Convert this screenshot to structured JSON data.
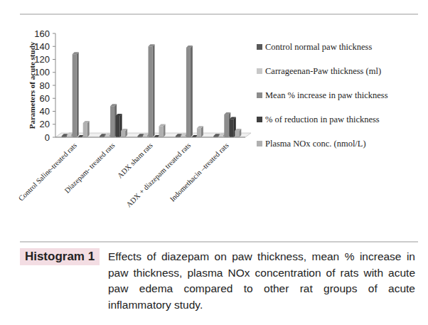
{
  "chart_data": {
    "type": "bar",
    "title": "Histogram 1",
    "subtitle": "Effects of diazepam on paw thickness, mean % increase in paw thickness, plasma NOx concentration of rats with acute paw edema compared to other rat groups of acute inflammatory study.",
    "y_label": "Parameters of acute study",
    "categories": [
      "Control Saline-treated rats",
      "Diazepam- treated rats",
      "ADX sham rats",
      "ADX + diazepam treated rats",
      "Indomethacin –treated rats"
    ],
    "series": [
      {
        "name": "Control normal paw thickness",
        "color": "#595959",
        "values": [
          2,
          2,
          2,
          2,
          2
        ]
      },
      {
        "name": "Carrageenan-Paw thickness (ml)",
        "color": "#c8c8c8",
        "values": [
          4,
          3,
          3,
          3,
          3
        ]
      },
      {
        "name": "Mean % increase in paw thickness",
        "color": "#8c8c8c",
        "values": [
          128,
          48,
          140,
          138,
          35
        ]
      },
      {
        "name": "% of reduction in paw thickness",
        "color": "#3f3f3f",
        "values": [
          0,
          33,
          0,
          0,
          28
        ]
      },
      {
        "name": "Plasma NOx conc. (nmol/L)",
        "color": "#b0b0b0",
        "values": [
          22,
          10,
          17,
          14,
          10
        ]
      }
    ],
    "ylim": [
      0,
      160
    ],
    "yticks": [
      0,
      20,
      40,
      60,
      80,
      100,
      120,
      140,
      160
    ],
    "grid": false,
    "legend": "right"
  }
}
